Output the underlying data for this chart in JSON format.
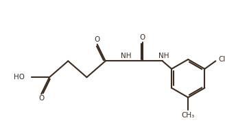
{
  "bg_color": "#ffffff",
  "line_color": "#3d2b1f",
  "line_width": 1.5,
  "font_size": 7.5,
  "figsize": [
    3.28,
    1.89
  ],
  "dpi": 100,
  "xlim": [
    0,
    9.5
  ],
  "ylim": [
    0,
    5.5
  ]
}
